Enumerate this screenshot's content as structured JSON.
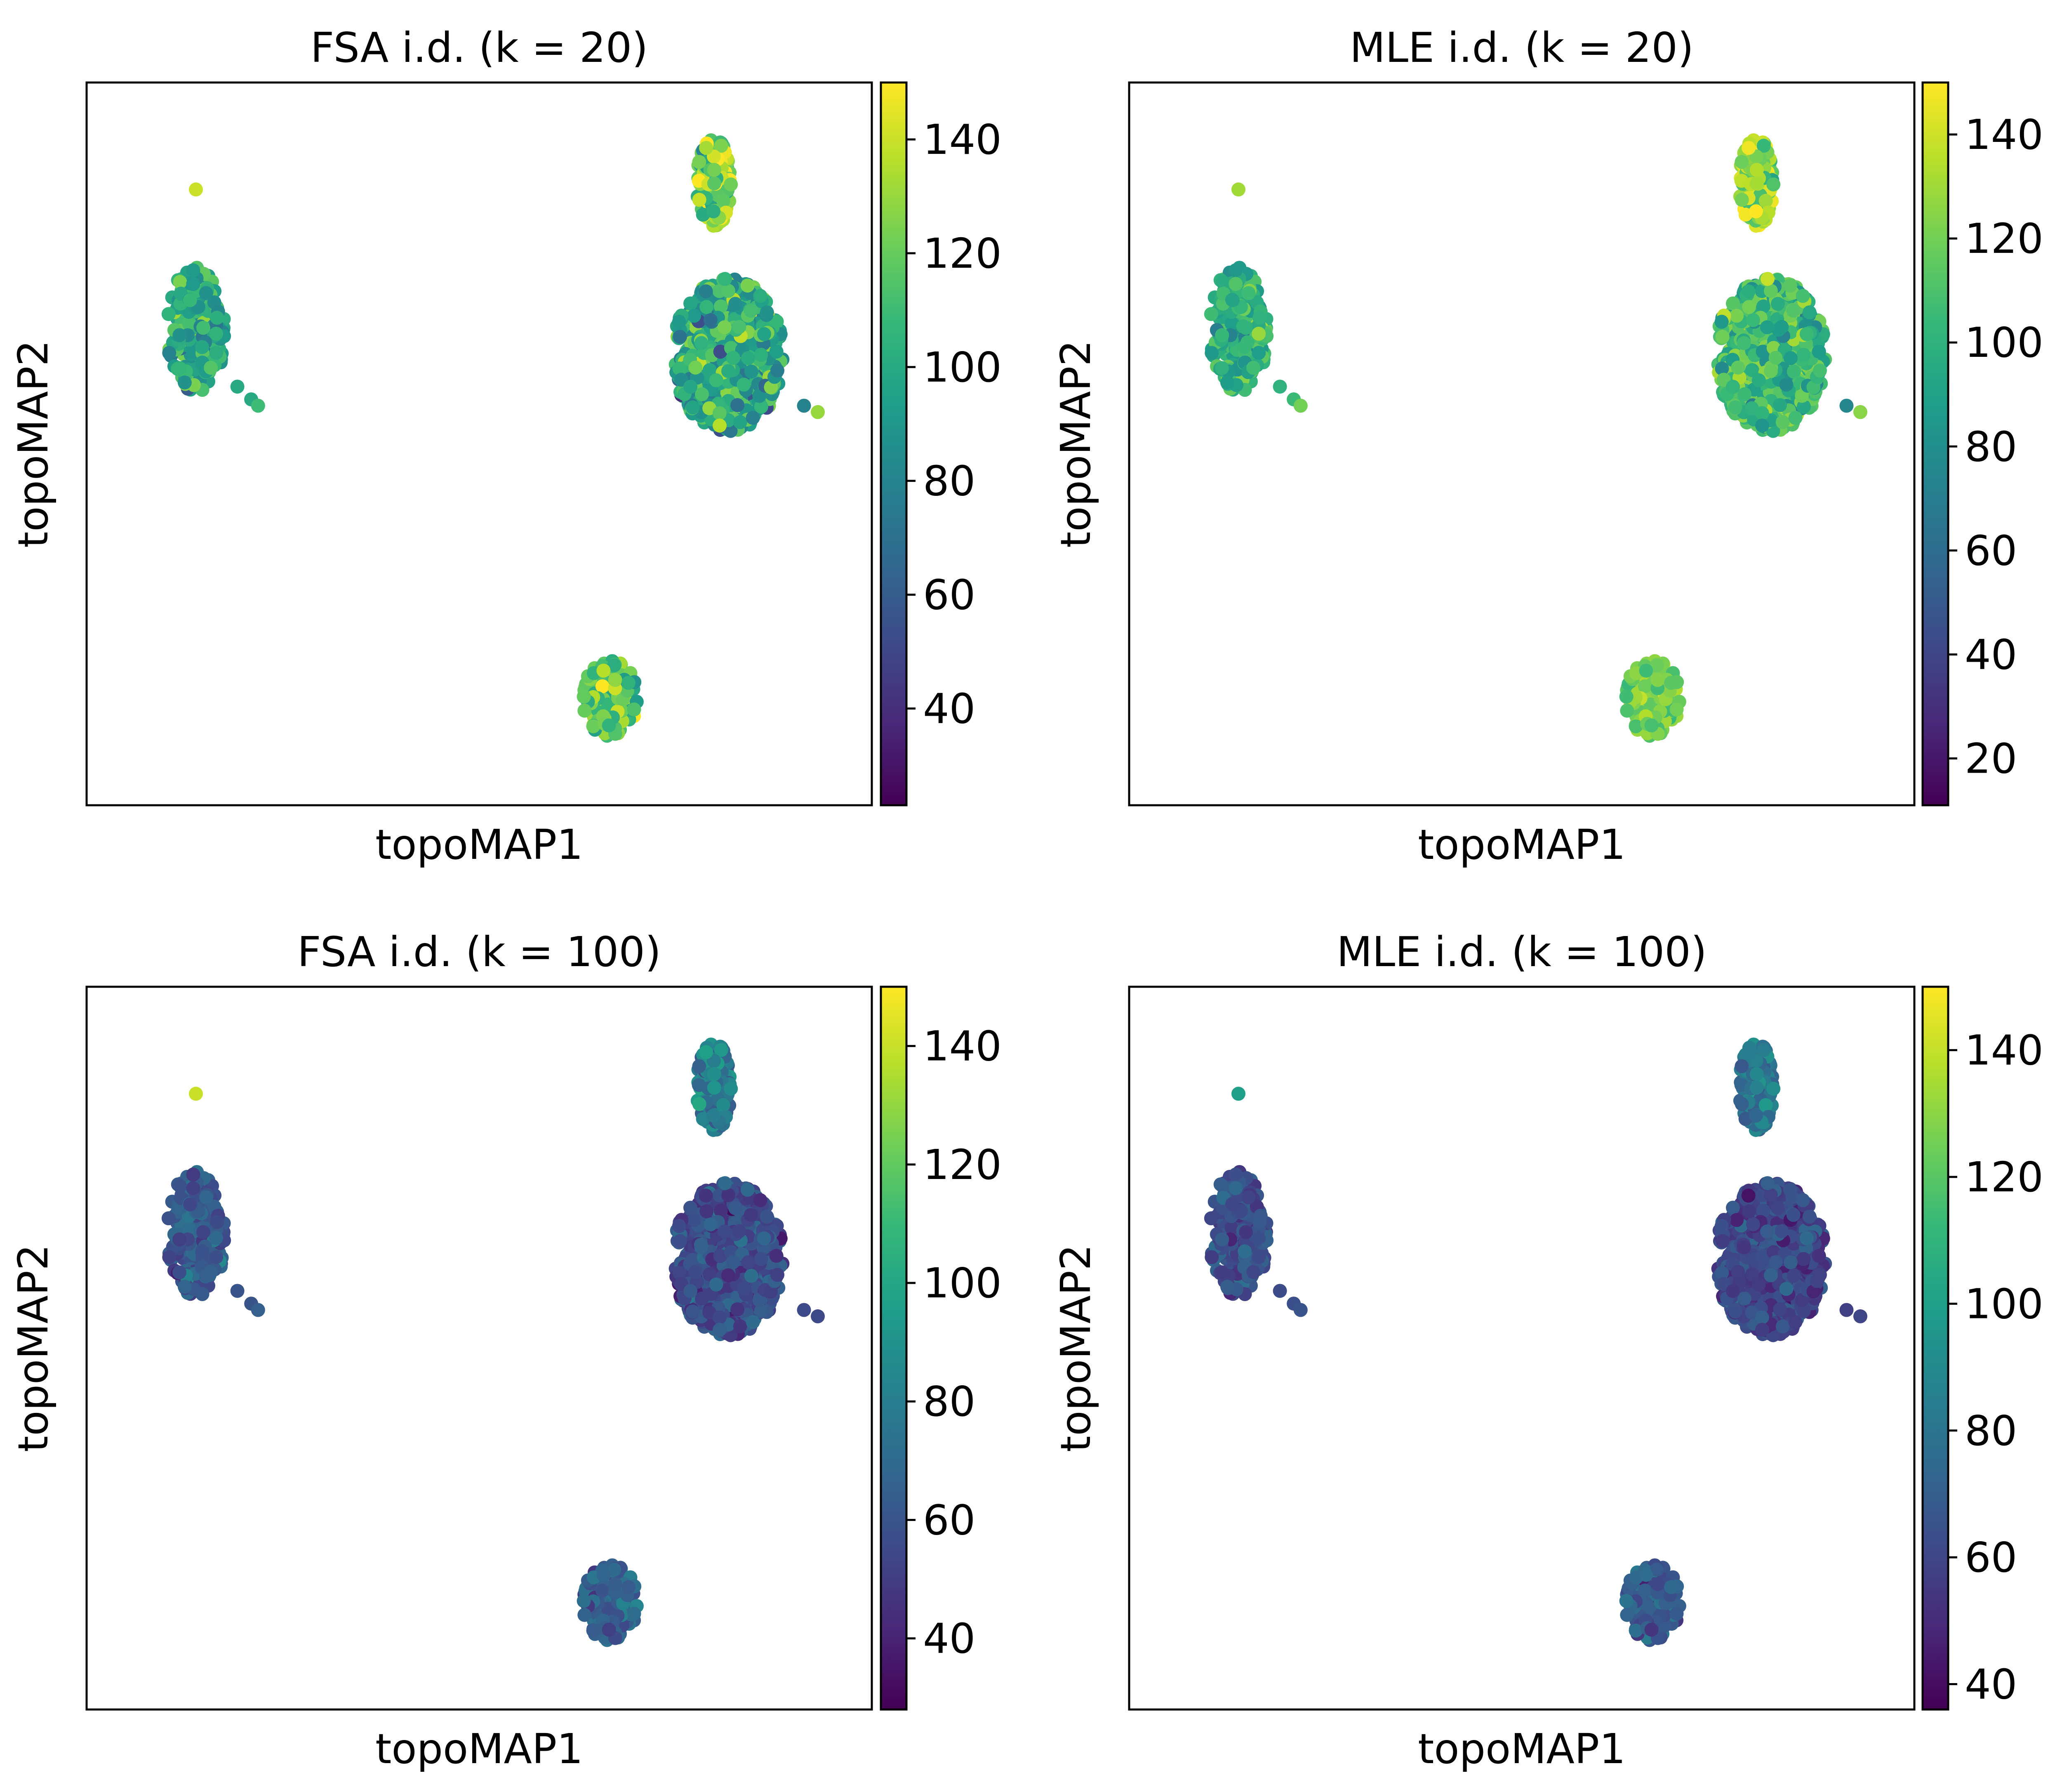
{
  "figure": {
    "colormap": "viridis",
    "viridis_stops": [
      "#440154",
      "#482878",
      "#3e4989",
      "#31688e",
      "#26828e",
      "#1f9e89",
      "#35b779",
      "#6ece58",
      "#b5de2b",
      "#fde725"
    ]
  },
  "chart_data": [
    {
      "type": "scatter",
      "title": "FSA i.d. (k = 20)",
      "xlabel": "topoMAP1",
      "ylabel": "topoMAP2",
      "xticks": false,
      "yticks": false,
      "grid": false,
      "colorbar": {
        "vmin": 23,
        "vmax": 150,
        "ticks": [
          40,
          60,
          80,
          100,
          120,
          140
        ]
      },
      "clusters": [
        {
          "name": "left",
          "center": [
            0.09,
            0.68
          ],
          "spread": [
            0.085,
            0.2
          ],
          "count": 230,
          "mean_value": 100,
          "sd_value": 16
        },
        {
          "name": "right",
          "center": [
            0.86,
            0.64
          ],
          "spread": [
            0.16,
            0.24
          ],
          "count": 560,
          "mean_value": 100,
          "sd_value": 17
        },
        {
          "name": "right-upper",
          "center": [
            0.84,
            0.91
          ],
          "spread": [
            0.05,
            0.14
          ],
          "count": 140,
          "mean_value": 125,
          "sd_value": 18
        },
        {
          "name": "bottom",
          "center": [
            0.69,
            0.1
          ],
          "spread": [
            0.08,
            0.12
          ],
          "count": 130,
          "mean_value": 118,
          "sd_value": 13
        }
      ],
      "outliers": [
        {
          "x": 0.09,
          "y": 0.9,
          "value": 140
        },
        {
          "x": 0.15,
          "y": 0.59,
          "value": 100
        },
        {
          "x": 0.17,
          "y": 0.57,
          "value": 100
        },
        {
          "x": 0.18,
          "y": 0.56,
          "value": 110
        },
        {
          "x": 0.97,
          "y": 0.56,
          "value": 80
        },
        {
          "x": 0.99,
          "y": 0.55,
          "value": 130
        }
      ]
    },
    {
      "type": "scatter",
      "title": "MLE i.d. (k = 20)",
      "xlabel": "topoMAP1",
      "ylabel": "topoMAP2",
      "xticks": false,
      "yticks": false,
      "grid": false,
      "colorbar": {
        "vmin": 11,
        "vmax": 150,
        "ticks": [
          20,
          40,
          60,
          80,
          100,
          120,
          140
        ]
      },
      "clusters": [
        {
          "name": "left",
          "center": [
            0.09,
            0.68
          ],
          "spread": [
            0.085,
            0.2
          ],
          "count": 230,
          "mean_value": 100,
          "sd_value": 12
        },
        {
          "name": "right",
          "center": [
            0.86,
            0.64
          ],
          "spread": [
            0.16,
            0.24
          ],
          "count": 560,
          "mean_value": 105,
          "sd_value": 14
        },
        {
          "name": "right-upper",
          "center": [
            0.84,
            0.91
          ],
          "spread": [
            0.05,
            0.14
          ],
          "count": 140,
          "mean_value": 128,
          "sd_value": 14
        },
        {
          "name": "bottom",
          "center": [
            0.69,
            0.1
          ],
          "spread": [
            0.08,
            0.12
          ],
          "count": 130,
          "mean_value": 122,
          "sd_value": 9
        }
      ],
      "outliers": [
        {
          "x": 0.09,
          "y": 0.9,
          "value": 130
        },
        {
          "x": 0.15,
          "y": 0.59,
          "value": 100
        },
        {
          "x": 0.17,
          "y": 0.57,
          "value": 105
        },
        {
          "x": 0.18,
          "y": 0.56,
          "value": 120
        },
        {
          "x": 0.97,
          "y": 0.56,
          "value": 75
        },
        {
          "x": 0.99,
          "y": 0.55,
          "value": 125
        }
      ]
    },
    {
      "type": "scatter",
      "title": "FSA i.d. (k = 100)",
      "xlabel": "topoMAP1",
      "ylabel": "topoMAP2",
      "xticks": false,
      "yticks": false,
      "grid": false,
      "colorbar": {
        "vmin": 28,
        "vmax": 150,
        "ticks": [
          40,
          60,
          80,
          100,
          120,
          140
        ]
      },
      "clusters": [
        {
          "name": "left",
          "center": [
            0.09,
            0.68
          ],
          "spread": [
            0.085,
            0.2
          ],
          "count": 230,
          "mean_value": 62,
          "sd_value": 8
        },
        {
          "name": "right",
          "center": [
            0.86,
            0.64
          ],
          "spread": [
            0.16,
            0.24
          ],
          "count": 560,
          "mean_value": 56,
          "sd_value": 8
        },
        {
          "name": "right-upper",
          "center": [
            0.84,
            0.91
          ],
          "spread": [
            0.05,
            0.14
          ],
          "count": 140,
          "mean_value": 78,
          "sd_value": 9
        },
        {
          "name": "bottom",
          "center": [
            0.69,
            0.1
          ],
          "spread": [
            0.08,
            0.12
          ],
          "count": 130,
          "mean_value": 65,
          "sd_value": 8
        }
      ],
      "outliers": [
        {
          "x": 0.09,
          "y": 0.9,
          "value": 140
        },
        {
          "x": 0.15,
          "y": 0.59,
          "value": 60
        },
        {
          "x": 0.17,
          "y": 0.57,
          "value": 60
        },
        {
          "x": 0.18,
          "y": 0.56,
          "value": 65
        },
        {
          "x": 0.97,
          "y": 0.56,
          "value": 55
        },
        {
          "x": 0.99,
          "y": 0.55,
          "value": 55
        }
      ]
    },
    {
      "type": "scatter",
      "title": "MLE i.d. (k = 100)",
      "xlabel": "topoMAP1",
      "ylabel": "topoMAP2",
      "xticks": false,
      "yticks": false,
      "grid": false,
      "colorbar": {
        "vmin": 36,
        "vmax": 150,
        "ticks": [
          40,
          60,
          80,
          100,
          120,
          140
        ]
      },
      "clusters": [
        {
          "name": "left",
          "center": [
            0.09,
            0.68
          ],
          "spread": [
            0.085,
            0.2
          ],
          "count": 230,
          "mean_value": 64,
          "sd_value": 7
        },
        {
          "name": "right",
          "center": [
            0.86,
            0.64
          ],
          "spread": [
            0.16,
            0.24
          ],
          "count": 560,
          "mean_value": 60,
          "sd_value": 7
        },
        {
          "name": "right-upper",
          "center": [
            0.84,
            0.91
          ],
          "spread": [
            0.05,
            0.14
          ],
          "count": 140,
          "mean_value": 82,
          "sd_value": 8
        },
        {
          "name": "bottom",
          "center": [
            0.69,
            0.1
          ],
          "spread": [
            0.08,
            0.12
          ],
          "count": 130,
          "mean_value": 66,
          "sd_value": 7
        }
      ],
      "outliers": [
        {
          "x": 0.09,
          "y": 0.9,
          "value": 100
        },
        {
          "x": 0.15,
          "y": 0.59,
          "value": 62
        },
        {
          "x": 0.17,
          "y": 0.57,
          "value": 64
        },
        {
          "x": 0.18,
          "y": 0.56,
          "value": 66
        },
        {
          "x": 0.97,
          "y": 0.56,
          "value": 58
        },
        {
          "x": 0.99,
          "y": 0.55,
          "value": 60
        }
      ]
    }
  ]
}
